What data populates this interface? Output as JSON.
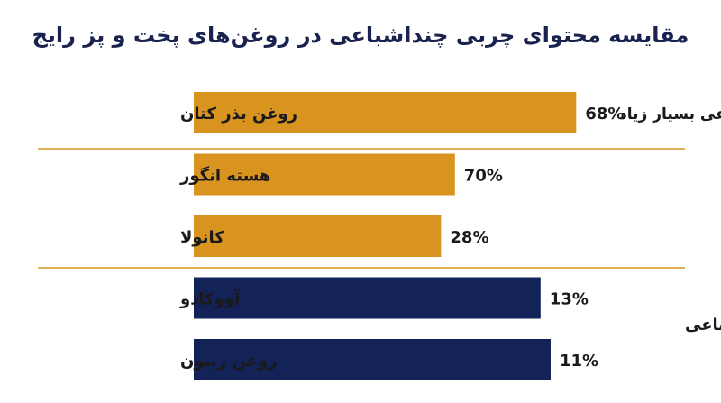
{
  "chart_data": {
    "type": "bar",
    "orientation": "horizontal",
    "title": "مقایسه محتوای چربی چنداشباعی در روغن‌های پخت و پز رایج",
    "categories": [
      "روغن بذر کتان",
      "هسته انگور",
      "کانولا",
      "آووکادو",
      "روغن زیتون"
    ],
    "values": [
      68,
      70,
      28,
      13,
      11
    ],
    "value_labels": [
      "68%",
      "70%",
      "28%",
      "13%",
      "11%"
    ],
    "groups": [
      {
        "label": "چنداشباعی بسیار زیاد",
        "color": "#d9931f",
        "members": [
          0
        ]
      },
      {
        "label": "",
        "color": "#d9931f",
        "members": [
          1,
          2
        ]
      },
      {
        "label": "عمدتاً تک‌اشباعی",
        "color": "#132257",
        "members": [
          3,
          4
        ]
      }
    ],
    "separator_color": "#d9931f",
    "grid": false
  }
}
